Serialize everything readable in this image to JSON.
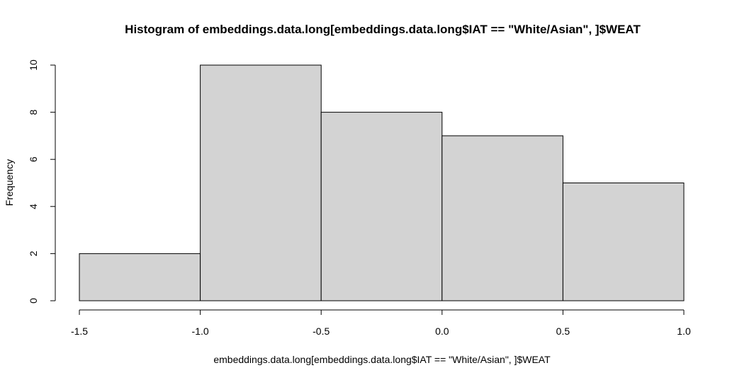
{
  "chart_data": {
    "type": "bar",
    "histogram": true,
    "title": "Histogram of embeddings.data.long[embeddings.data.long$IAT == \"White/Asian\", ]$WEAT",
    "xlabel": "embeddings.data.long[embeddings.data.long$IAT == \"White/Asian\", ]$WEAT",
    "ylabel": "Frequency",
    "bins": [
      {
        "from": -1.5,
        "to": -1.0,
        "count": 2
      },
      {
        "from": -1.0,
        "to": -0.5,
        "count": 10
      },
      {
        "from": -0.5,
        "to": 0.0,
        "count": 8
      },
      {
        "from": 0.0,
        "to": 0.5,
        "count": 7
      },
      {
        "from": 0.5,
        "to": 1.0,
        "count": 5
      }
    ],
    "xlim": [
      -1.5,
      1.0
    ],
    "ylim": [
      0,
      10
    ],
    "x_ticks": [
      -1.5,
      -1.0,
      -0.5,
      0.0,
      0.5,
      1.0
    ],
    "x_tick_labels": [
      "-1.5",
      "-1.0",
      "-0.5",
      "0.0",
      "0.5",
      "1.0"
    ],
    "y_ticks": [
      0,
      2,
      4,
      6,
      8,
      10
    ],
    "y_tick_labels": [
      "0",
      "2",
      "4",
      "6",
      "8",
      "10"
    ],
    "bar_fill": "#d3d3d3",
    "bar_stroke": "#000000",
    "grid": false,
    "legend": "none"
  }
}
